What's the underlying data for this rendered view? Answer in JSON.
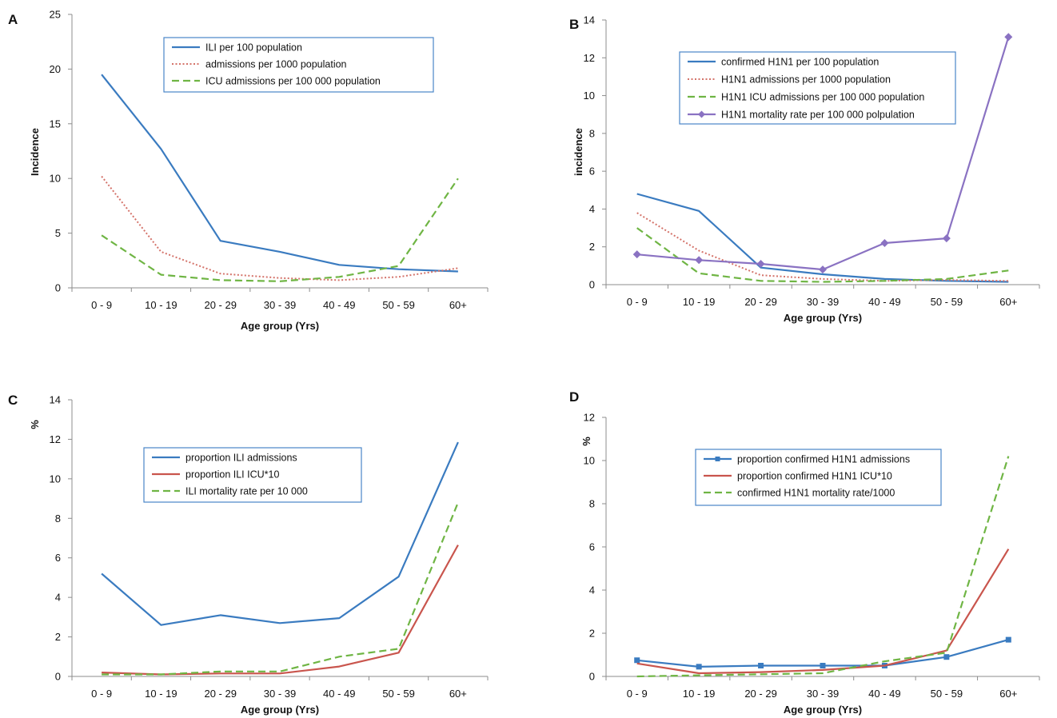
{
  "chart_data": [
    {
      "panel": "A",
      "type": "line",
      "categories": [
        "0 - 9",
        "10 - 19",
        "20 - 29",
        "30 - 39",
        "40 - 49",
        "50 - 59",
        "60+"
      ],
      "xlabel": "Age group (Yrs)",
      "ylabel": "Incidence",
      "ylim": [
        0,
        25
      ],
      "yticks": [
        0,
        5,
        10,
        15,
        20,
        25
      ],
      "series": [
        {
          "name": "ILI per 100 population",
          "values": [
            19.5,
            12.7,
            4.3,
            3.3,
            2.1,
            1.7,
            1.5
          ],
          "color": "#3a7bc0",
          "style": "solid",
          "marker": "none"
        },
        {
          "name": "admissions per 1000 population",
          "values": [
            10.2,
            3.3,
            1.3,
            0.9,
            0.7,
            1.0,
            1.8
          ],
          "color": "#d4736a",
          "style": "dotted",
          "marker": "none"
        },
        {
          "name": "ICU admissions per 100 000 population",
          "values": [
            4.8,
            1.2,
            0.7,
            0.6,
            1.0,
            2.0,
            10.0
          ],
          "color": "#6fb544",
          "style": "dashed",
          "marker": "none"
        }
      ]
    },
    {
      "panel": "B",
      "type": "line",
      "categories": [
        "0 - 9",
        "10 - 19",
        "20 - 29",
        "30 - 39",
        "40 - 49",
        "50 - 59",
        "60+"
      ],
      "xlabel": "Age group (Yrs)",
      "ylabel": "incidence",
      "ylim": [
        0,
        14
      ],
      "yticks": [
        0,
        2,
        4,
        6,
        8,
        10,
        12,
        14
      ],
      "series": [
        {
          "name": "confirmed H1N1 per 100 population",
          "values": [
            4.8,
            3.9,
            0.9,
            0.55,
            0.3,
            0.2,
            0.15
          ],
          "color": "#3a7bc0",
          "style": "solid",
          "marker": "none"
        },
        {
          "name": "H1N1 admissions per 1000 population",
          "values": [
            3.8,
            1.8,
            0.5,
            0.3,
            0.2,
            0.25,
            0.2
          ],
          "color": "#d4736a",
          "style": "dotted",
          "marker": "none"
        },
        {
          "name": "H1N1 ICU admissions per 100 000 population",
          "values": [
            3.0,
            0.6,
            0.2,
            0.15,
            0.2,
            0.3,
            0.75
          ],
          "color": "#6fb544",
          "style": "dashed",
          "marker": "none"
        },
        {
          "name": "H1N1 mortality rate per 100 000 polpulation",
          "values": [
            1.6,
            1.3,
            1.1,
            0.8,
            2.2,
            2.45,
            13.1
          ],
          "color": "#8a72c2",
          "style": "solid",
          "marker": "diamond"
        }
      ]
    },
    {
      "panel": "C",
      "type": "line",
      "categories": [
        "0 - 9",
        "10 - 19",
        "20 - 29",
        "30 - 39",
        "40 - 49",
        "50 - 59",
        "60+"
      ],
      "xlabel": "Age group (Yrs)",
      "ylabel": "%",
      "ylim": [
        0,
        14
      ],
      "yticks": [
        0,
        2,
        4,
        6,
        8,
        10,
        12,
        14
      ],
      "series": [
        {
          "name": "proportion ILI admissions",
          "values": [
            5.2,
            2.6,
            3.1,
            2.7,
            2.95,
            5.05,
            11.85
          ],
          "color": "#3a7bc0",
          "style": "solid",
          "marker": "none"
        },
        {
          "name": "proportion ILI ICU*10",
          "values": [
            0.2,
            0.1,
            0.15,
            0.15,
            0.5,
            1.2,
            6.65
          ],
          "color": "#c9554d",
          "style": "solid",
          "marker": "none"
        },
        {
          "name": "ILI mortality rate per 10 000",
          "values": [
            0.1,
            0.1,
            0.25,
            0.25,
            1.0,
            1.4,
            8.8
          ],
          "color": "#6fb544",
          "style": "dashed",
          "marker": "none"
        }
      ]
    },
    {
      "panel": "D",
      "type": "line",
      "categories": [
        "0 - 9",
        "10 - 19",
        "20 - 29",
        "30 - 39",
        "40 - 49",
        "50 - 59",
        "60+"
      ],
      "xlabel": "Age group (Yrs)",
      "ylabel": "%",
      "ylim": [
        0,
        12
      ],
      "yticks": [
        0,
        2,
        4,
        6,
        8,
        10,
        12
      ],
      "series": [
        {
          "name": "proportion confirmed H1N1 admissions",
          "values": [
            0.75,
            0.45,
            0.5,
            0.5,
            0.5,
            0.9,
            1.7
          ],
          "color": "#3a7bc0",
          "style": "solid",
          "marker": "square"
        },
        {
          "name": "proportion confirmed H1N1 ICU*10",
          "values": [
            0.6,
            0.15,
            0.2,
            0.3,
            0.5,
            1.2,
            5.9
          ],
          "color": "#c9554d",
          "style": "solid",
          "marker": "none"
        },
        {
          "name": "confirmed H1N1 mortality rate/1000",
          "values": [
            0.0,
            0.05,
            0.1,
            0.15,
            0.7,
            1.1,
            10.2
          ],
          "color": "#6fb544",
          "style": "dashed",
          "marker": "none"
        }
      ]
    }
  ]
}
